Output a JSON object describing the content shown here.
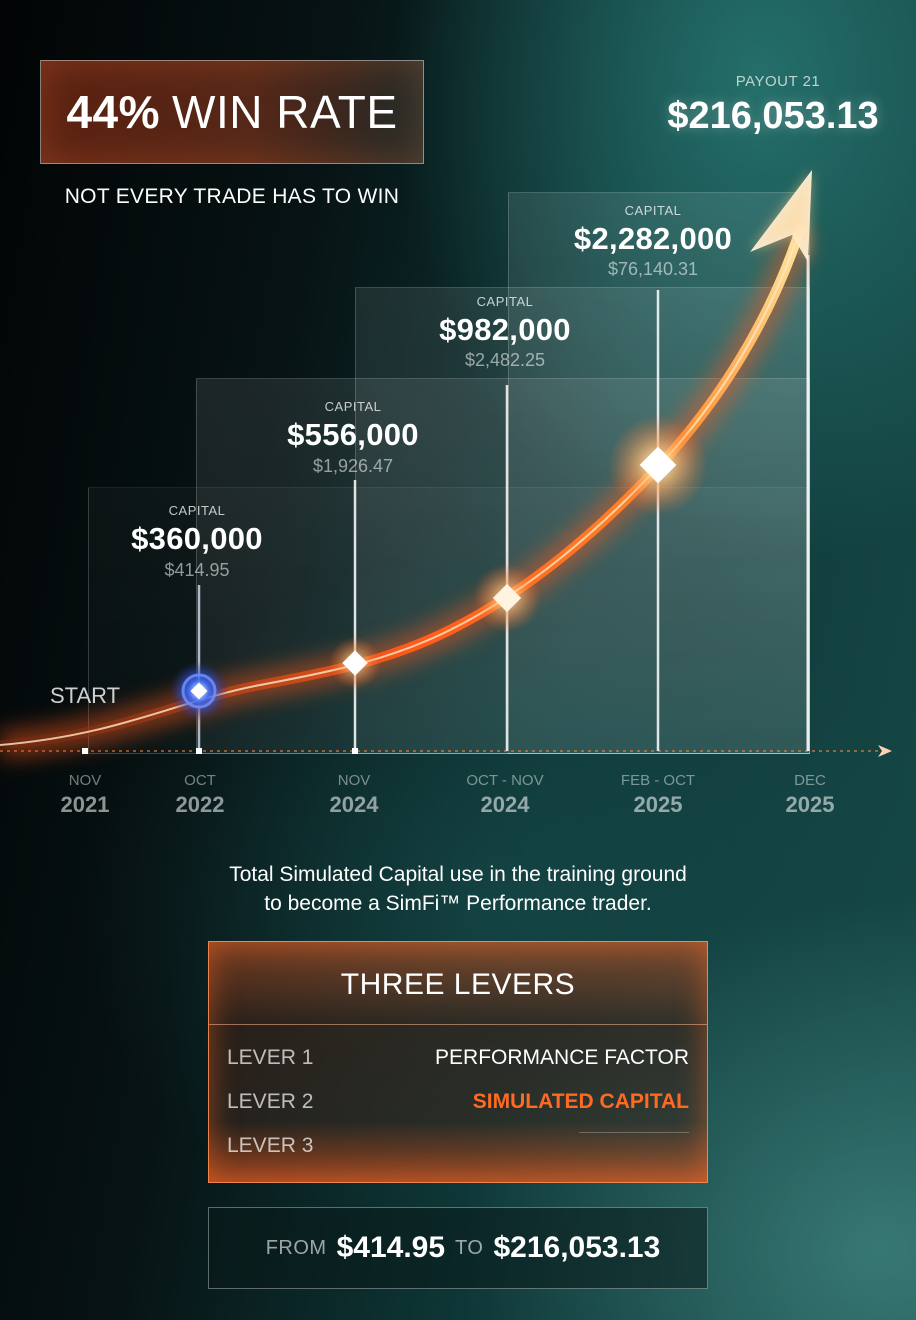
{
  "header": {
    "win_rate_pct": "44%",
    "win_rate_text": "WIN RATE",
    "subtitle": "NOT EVERY TRADE HAS TO WIN"
  },
  "payout": {
    "label": "PAYOUT 21",
    "value": "$216,053.13"
  },
  "start_label": "START",
  "stages": [
    {
      "label": "CAPITAL",
      "capital": "$360,000",
      "amount": "$414.95"
    },
    {
      "label": "CAPITAL",
      "capital": "$556,000",
      "amount": "$1,926.47"
    },
    {
      "label": "CAPITAL",
      "capital": "$982,000",
      "amount": "$2,482.25"
    },
    {
      "label": "CAPITAL",
      "capital": "$2,282,000",
      "amount": "$76,140.31"
    }
  ],
  "timeline": [
    {
      "month": "NOV",
      "year": "2021"
    },
    {
      "month": "OCT",
      "year": "2022"
    },
    {
      "month": "NOV",
      "year": "2024"
    },
    {
      "month": "OCT - NOV",
      "year": "2024"
    },
    {
      "month": "FEB - OCT",
      "year": "2025"
    },
    {
      "month": "DEC",
      "year": "2025"
    }
  ],
  "caption": {
    "line1": "Total Simulated Capital use in the training ground",
    "line2": "to become a SimFi™ Performance trader."
  },
  "levers": {
    "title": "THREE LEVERS",
    "items": [
      {
        "name": "LEVER 1",
        "value": "PERFORMANCE FACTOR"
      },
      {
        "name": "LEVER 2",
        "value": "SIMULATED CAPITAL"
      },
      {
        "name": "LEVER 3",
        "value": ""
      }
    ]
  },
  "summary": {
    "from_word": "FROM",
    "from_value": "$414.95",
    "to_word": "TO",
    "to_value": "$216,053.13"
  },
  "colors": {
    "accent_orange": "#ff6a22",
    "start_blue": "#3a6cff",
    "teal": "#164a48"
  }
}
